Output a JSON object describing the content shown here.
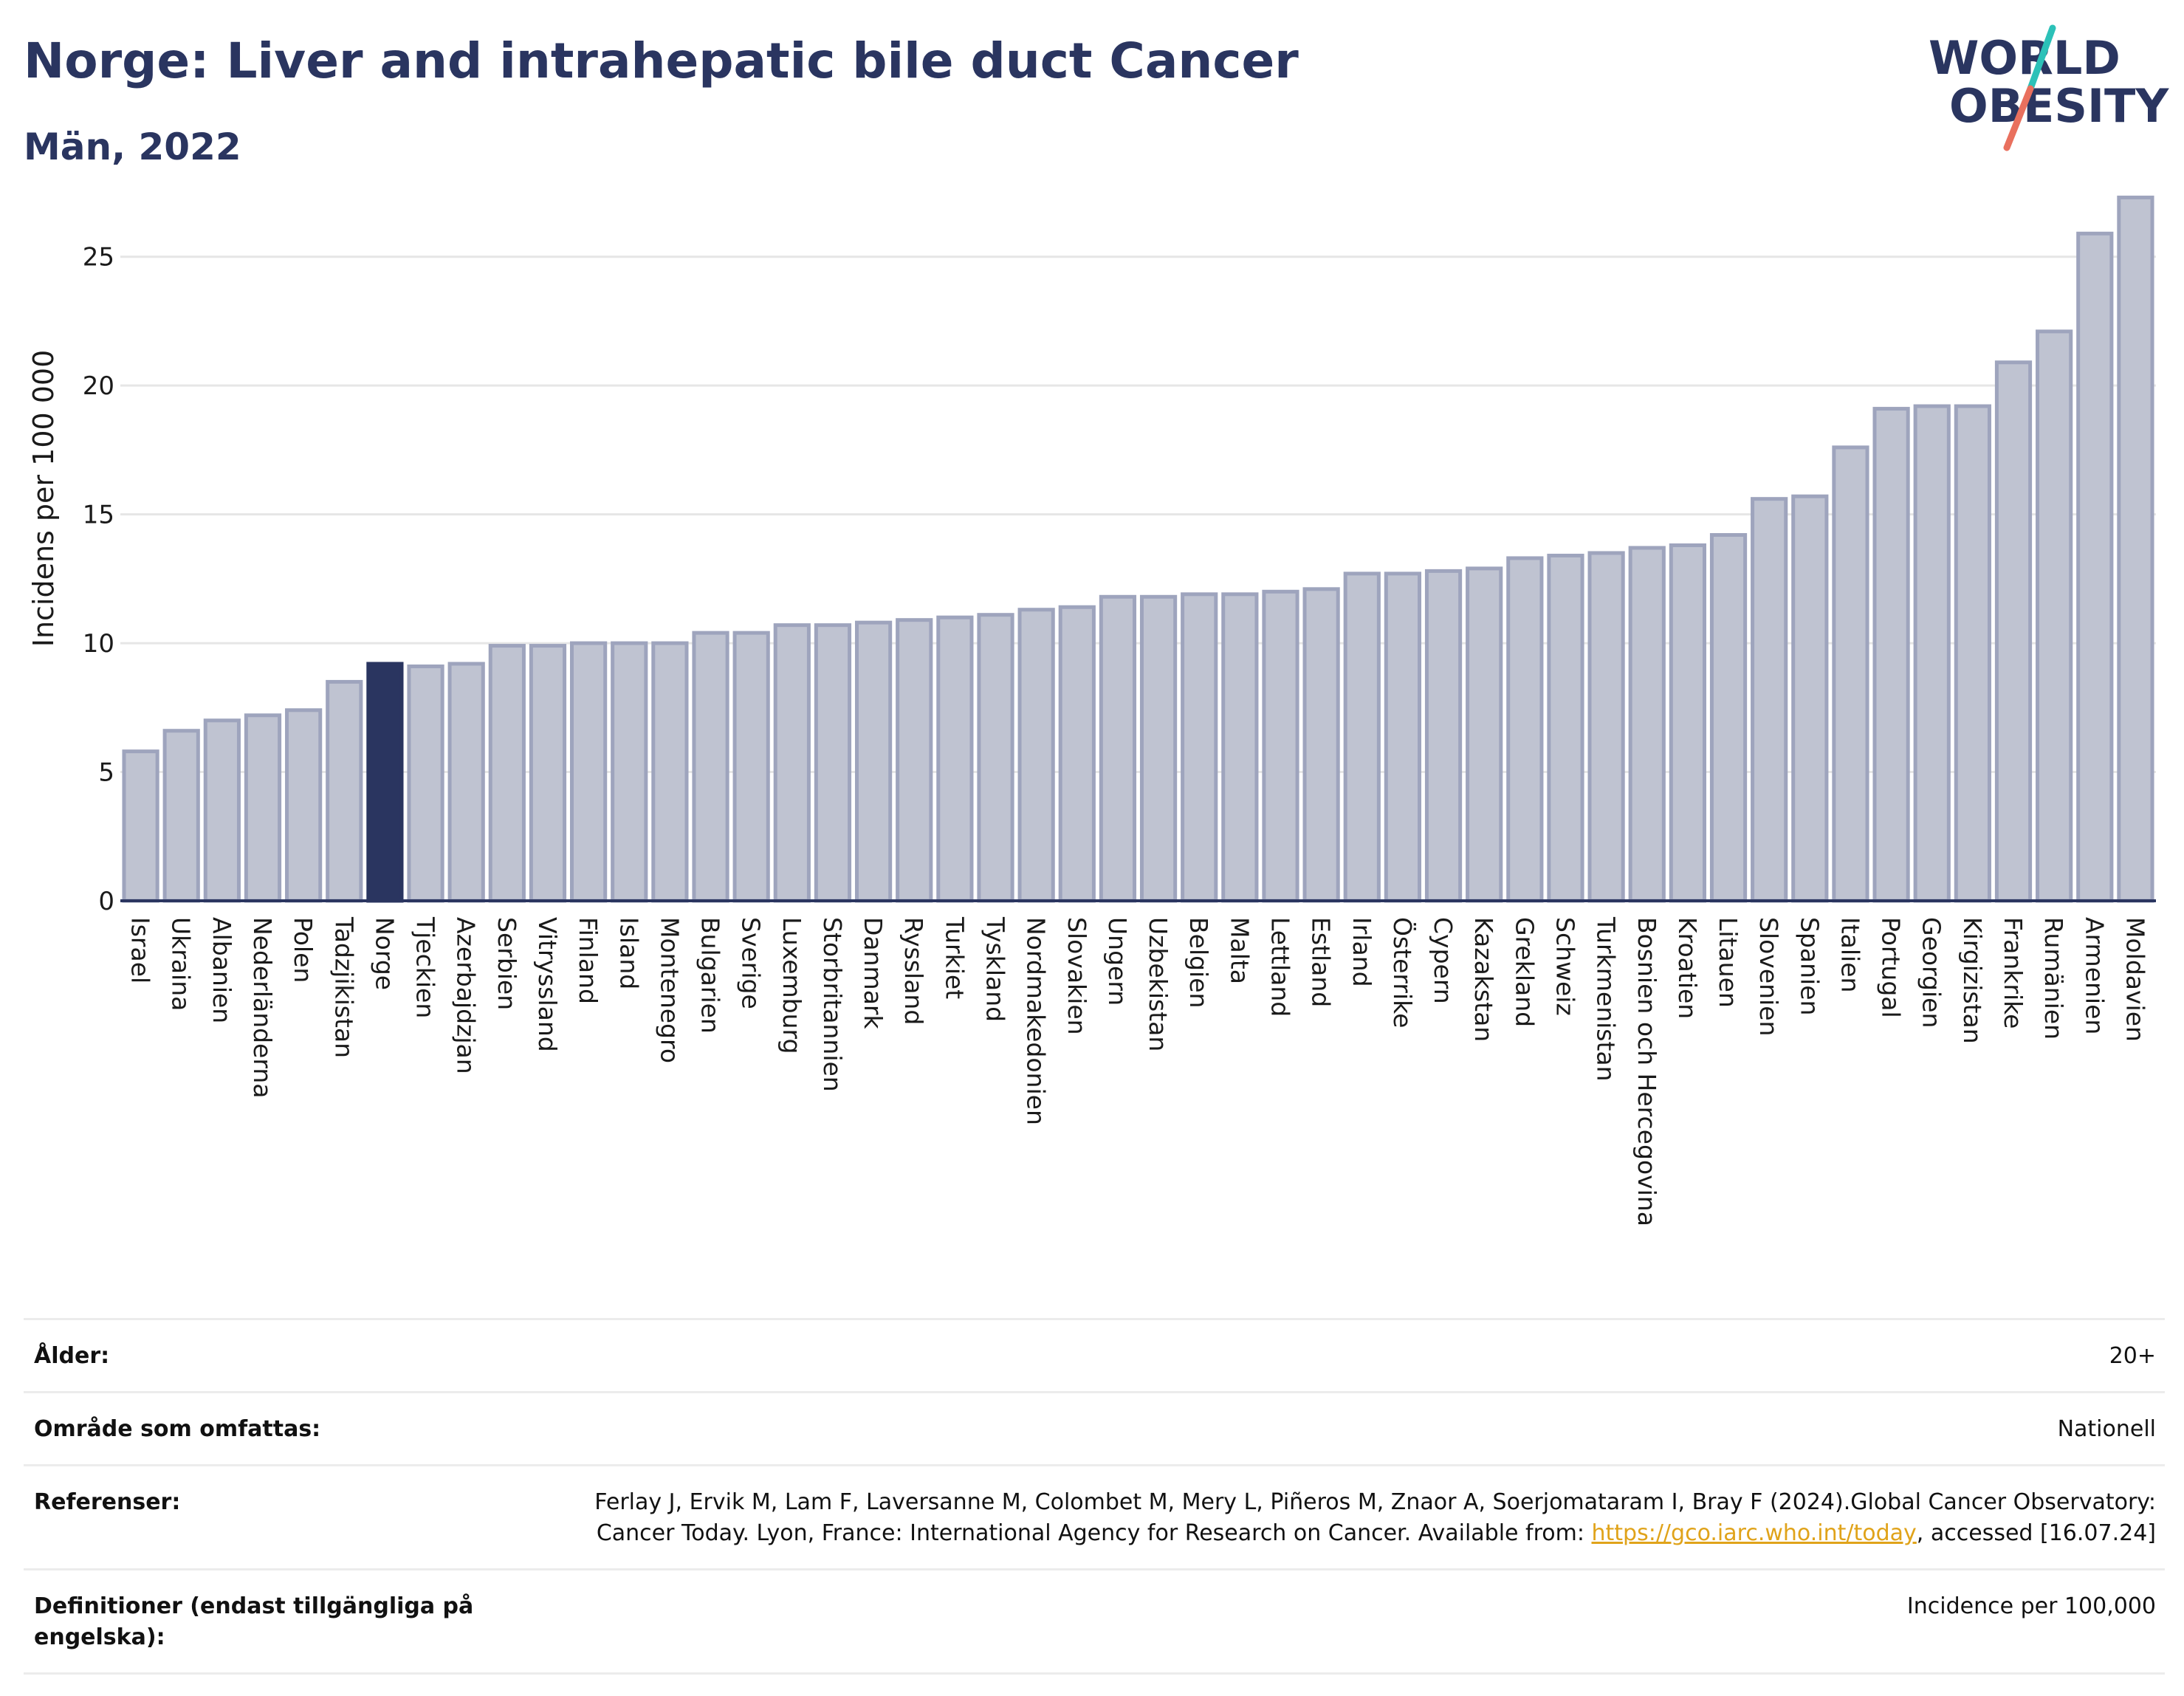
{
  "header": {
    "title": "Norge: Liver and intrahepatic bile duct Cancer",
    "subtitle": "Män, 2022"
  },
  "logo": {
    "line1": "WORLD",
    "line2": "OBESITY",
    "colors": {
      "text": "#2a3560",
      "slash_teal": "#2cc1b8",
      "slash_coral": "#e9705e"
    }
  },
  "colors": {
    "bar": "#bfc3d1",
    "bar_stroke": "#9ea4bd",
    "highlight": "#2a3560",
    "grid": "#e6e6e6",
    "axis": "#2a3560"
  },
  "chart_data": {
    "type": "bar",
    "ylabel": "Incidens per 100 000",
    "ylim": [
      0,
      27.8
    ],
    "yticks": [
      0,
      5,
      10,
      15,
      20,
      25
    ],
    "grid": true,
    "highlight": "Norge",
    "categories": [
      "Israel",
      "Ukraina",
      "Albanien",
      "Nederländerna",
      "Polen",
      "Tadzjikistan",
      "Norge",
      "Tjeckien",
      "Azerbajdzjan",
      "Serbien",
      "Vitryssland",
      "Finland",
      "Island",
      "Montenegro",
      "Bulgarien",
      "Sverige",
      "Luxemburg",
      "Storbritannien",
      "Danmark",
      "Ryssland",
      "Turkiet",
      "Tyskland",
      "Nordmakedonien",
      "Slovakien",
      "Ungern",
      "Uzbekistan",
      "Belgien",
      "Malta",
      "Lettland",
      "Estland",
      "Irland",
      "Österrike",
      "Cypern",
      "Kazakstan",
      "Grekland",
      "Schweiz",
      "Turkmenistan",
      "Bosnien och Hercegovina",
      "Kroatien",
      "Litauen",
      "Slovenien",
      "Spanien",
      "Italien",
      "Portugal",
      "Georgien",
      "Kirgizistan",
      "Frankrike",
      "Rumänien",
      "Armenien",
      "Moldavien"
    ],
    "values": [
      5.8,
      6.6,
      7.0,
      7.2,
      7.4,
      8.5,
      9.2,
      9.1,
      9.2,
      9.9,
      9.9,
      10.0,
      10.0,
      10.0,
      10.4,
      10.4,
      10.7,
      10.7,
      10.8,
      10.9,
      11.0,
      11.1,
      11.3,
      11.4,
      11.8,
      11.8,
      11.9,
      11.9,
      12.0,
      12.1,
      12.7,
      12.7,
      12.8,
      12.9,
      13.3,
      13.4,
      13.5,
      13.7,
      13.8,
      14.2,
      15.6,
      15.7,
      17.6,
      19.1,
      19.2,
      19.2,
      20.9,
      22.1,
      25.9,
      27.3
    ]
  },
  "info": [
    {
      "label": "Ålder:",
      "value": "20+"
    },
    {
      "label": "Område som omfattas:",
      "value": "Nationell"
    },
    {
      "label": "Referenser:",
      "value_pre": "Ferlay J, Ervik M, Lam F, Laversanne M, Colombet M, Mery L, Piñeros M, Znaor A, Soerjomataram I, Bray F (2024).Global Cancer Observatory: Cancer Today. Lyon, France: International Agency for Research on Cancer. Available from: ",
      "link": "https://gco.iarc.who.int/today",
      "value_post": ", accessed [16.07.24]"
    },
    {
      "label": "Definitioner (endast tillgängliga på engelska):",
      "value": "Incidence per 100,000"
    }
  ]
}
